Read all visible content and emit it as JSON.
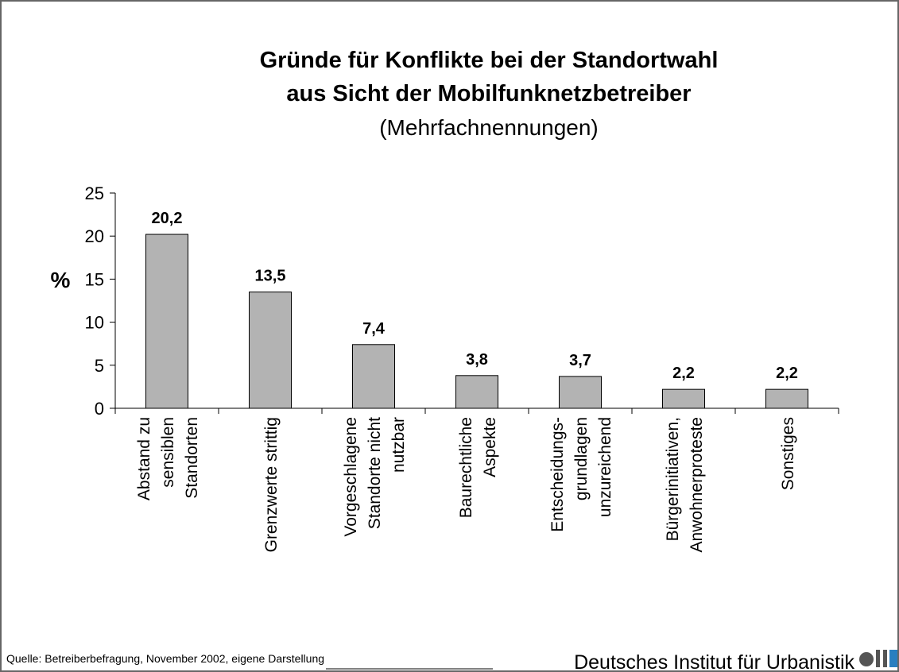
{
  "chart_data": {
    "type": "bar",
    "title": "Gründe für Konflikte bei der Standortwahl",
    "title_line2": "aus Sicht der Mobilfunknetzbetreiber",
    "subtitle": "(Mehrfachnennungen)",
    "y_label": "%",
    "categories": [
      "Abstand zu\nsensiblen\nStandorten",
      "Grenzwerte strittig",
      "Vorgeschlagene\nStandorte nicht\nnutzbar",
      "Baurechtliche\nAspekte",
      "Entscheidungs-\ngrundlagen\nunzureichend",
      "Bürgerinitiativen,\nAnwohnerproteste",
      "Sonstiges"
    ],
    "values": [
      20.2,
      13.5,
      7.4,
      3.8,
      3.7,
      2.2,
      2.2
    ],
    "value_labels": [
      "20,2",
      "13,5",
      "7,4",
      "3,8",
      "3,7",
      "2,2",
      "2,2"
    ],
    "color": "#b3b3b3",
    "ylim": [
      0,
      25
    ],
    "yticks": [
      0,
      5,
      10,
      15,
      20,
      25
    ],
    "source": "Quelle: Betreiberbefragung, November 2002, eigene Darstellung",
    "publisher": "Deutsches Institut für Urbanistik"
  }
}
